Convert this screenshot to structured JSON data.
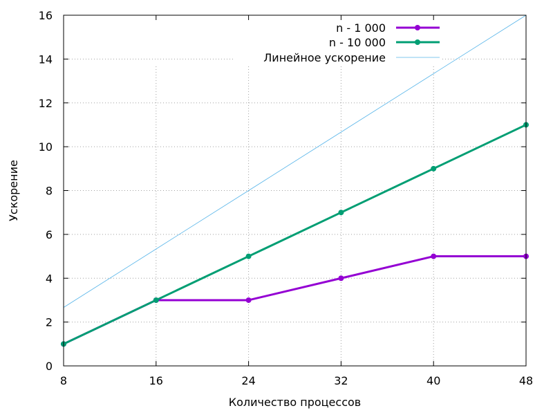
{
  "chart_data": {
    "type": "line",
    "xlabel": "Количество процессов",
    "ylabel": "Ускорение",
    "x": [
      8,
      16,
      24,
      32,
      40,
      48
    ],
    "xlim": [
      8,
      48
    ],
    "ylim": [
      0,
      16
    ],
    "xticks": [
      "8",
      "16",
      "24",
      "32",
      "40",
      "48"
    ],
    "yticks": [
      "0",
      "2",
      "4",
      "6",
      "8",
      "10",
      "12",
      "14",
      "16"
    ],
    "grid": true,
    "legend_position": "top-right",
    "series": [
      {
        "name": "n - 1 000",
        "values": [
          1,
          3,
          3,
          4,
          5,
          5
        ],
        "color": "#9400d3",
        "markers": true
      },
      {
        "name": "n - 10 000",
        "values": [
          1,
          3,
          5,
          7,
          9,
          11
        ],
        "color": "#009e73",
        "markers": true
      },
      {
        "name": "Линейное ускорение",
        "values": [
          2.667,
          5.333,
          8,
          10.667,
          13.333,
          16
        ],
        "color": "#56b4e9",
        "markers": false
      }
    ]
  }
}
